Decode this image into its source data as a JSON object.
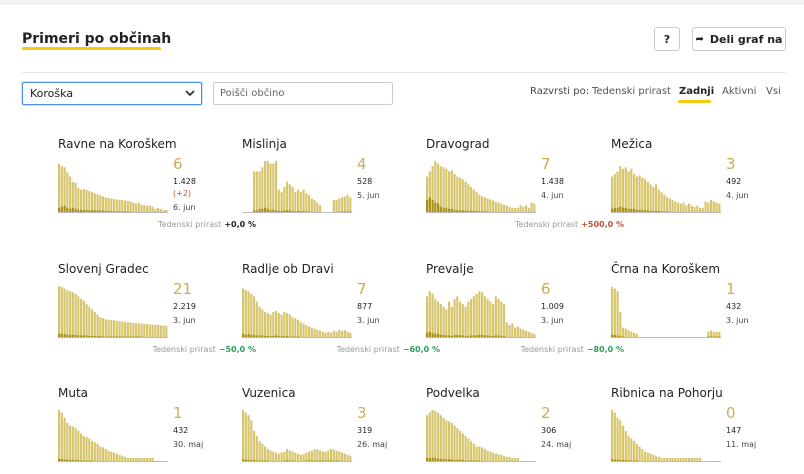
{
  "header": {
    "title": "Primeri po občinah",
    "help_label": "?",
    "share_label": "Deli graf na",
    "share_icon": "share-arrow-icon"
  },
  "filters": {
    "region_selected": "Koroška",
    "search_placeholder": "Poišči občino",
    "sort_label": "Razvrsti po:",
    "sort_options": [
      "Tedenski prirast",
      "Zadnji",
      "Aktivni",
      "Vsi"
    ],
    "sort_active": "Zadnji"
  },
  "colors": {
    "accent": "#f6c915",
    "bar_light": "#d6c56b",
    "bar_dark": "#a88f12",
    "number": "#c9ae55",
    "positive": "#c0503a",
    "negative": "#2f9e5d"
  },
  "weekly_label": "Tedenski prirast",
  "municipalities": [
    {
      "name": "Ravne na Koroškem",
      "latest": "6",
      "total": "1.428",
      "delta": "(+2)",
      "date": "6. jun",
      "weekly": "+0,0 %",
      "weekly_trend": "neutral",
      "chart_data": {
        "type": "bar",
        "values": [
          95,
          90,
          88,
          78,
          70,
          60,
          58,
          48,
          45,
          46,
          44,
          42,
          40,
          38,
          36,
          34,
          32,
          30,
          29,
          28,
          27,
          26,
          25,
          25,
          24,
          23,
          22,
          20,
          18,
          20,
          16,
          15,
          14,
          14,
          12,
          8,
          10,
          8,
          6,
          6
        ],
        "dark": [
          10,
          12,
          14,
          10,
          8,
          10,
          8,
          6,
          6,
          6,
          6,
          5,
          6,
          5,
          5,
          5,
          4,
          4,
          4,
          4,
          3,
          3,
          3,
          3,
          3,
          3,
          3,
          2,
          2,
          2,
          2,
          2,
          2,
          2,
          1,
          1,
          2,
          1,
          1,
          2
        ]
      }
    },
    {
      "name": "Mislinja",
      "latest": "4",
      "total": "528",
      "date": "5. jun",
      "weekly": "",
      "weekly_trend": "neutral",
      "chart_data": {
        "type": "bar",
        "values": [
          0,
          0,
          0,
          0,
          80,
          80,
          80,
          88,
          100,
          100,
          95,
          95,
          100,
          45,
          40,
          50,
          60,
          55,
          50,
          40,
          45,
          40,
          45,
          38,
          35,
          28,
          25,
          20,
          15,
          0,
          0,
          0,
          0,
          25,
          25,
          28,
          30,
          32,
          35,
          30
        ],
        "dark": [
          0,
          0,
          0,
          0,
          5,
          5,
          8,
          8,
          10,
          8,
          6,
          6,
          5,
          4,
          4,
          5,
          5,
          5,
          4,
          3,
          4,
          3,
          4,
          3,
          3,
          2,
          2,
          2,
          2,
          0,
          0,
          0,
          0,
          2,
          2,
          3,
          3,
          3,
          3,
          3
        ]
      }
    },
    {
      "name": "Dravograd",
      "latest": "7",
      "total": "1.438",
      "date": "4. jun",
      "weekly": "+500,0 %",
      "weekly_trend": "up",
      "chart_data": {
        "type": "bar",
        "values": [
          70,
          80,
          90,
          100,
          95,
          90,
          88,
          85,
          80,
          82,
          75,
          70,
          68,
          65,
          60,
          55,
          50,
          45,
          40,
          35,
          32,
          30,
          28,
          26,
          24,
          22,
          20,
          18,
          16,
          14,
          12,
          10,
          10,
          10,
          15,
          12,
          15,
          10,
          20,
          18
        ],
        "dark": [
          25,
          30,
          25,
          20,
          18,
          12,
          10,
          10,
          8,
          8,
          6,
          6,
          5,
          5,
          5,
          4,
          4,
          4,
          4,
          3,
          3,
          3,
          3,
          2,
          2,
          2,
          2,
          2,
          2,
          2,
          1,
          1,
          1,
          1,
          1,
          1,
          2,
          1,
          2,
          2
        ]
      }
    },
    {
      "name": "Mežica",
      "latest": "3",
      "total": "492",
      "date": "4. jun",
      "weekly": "",
      "weekly_trend": "neutral",
      "chart_data": {
        "type": "bar",
        "values": [
          70,
          75,
          80,
          90,
          85,
          88,
          80,
          85,
          75,
          70,
          72,
          68,
          65,
          60,
          55,
          50,
          55,
          45,
          40,
          35,
          30,
          28,
          25,
          22,
          20,
          18,
          20,
          15,
          18,
          14,
          12,
          14,
          10,
          10,
          22,
          20,
          25,
          22,
          20,
          18
        ],
        "dark": [
          8,
          10,
          10,
          12,
          10,
          10,
          8,
          8,
          8,
          6,
          6,
          6,
          5,
          5,
          4,
          4,
          4,
          4,
          3,
          3,
          3,
          3,
          2,
          2,
          2,
          2,
          2,
          2,
          2,
          1,
          1,
          1,
          1,
          1,
          2,
          2,
          2,
          2,
          2,
          2
        ]
      }
    },
    {
      "name": "Slovenj Gradec",
      "latest": "21",
      "total": "2.219",
      "date": "3. jun",
      "weekly": "−50,0 %",
      "weekly_trend": "down",
      "chart_data": {
        "type": "bar",
        "values": [
          100,
          98,
          95,
          92,
          90,
          88,
          85,
          80,
          75,
          72,
          65,
          60,
          55,
          50,
          45,
          40,
          38,
          36,
          35,
          34,
          34,
          33,
          32,
          32,
          31,
          30,
          30,
          29,
          29,
          28,
          28,
          27,
          27,
          26,
          26,
          25,
          25,
          24,
          24,
          23
        ],
        "dark": [
          8,
          8,
          8,
          6,
          6,
          6,
          6,
          5,
          5,
          5,
          5,
          4,
          4,
          4,
          4,
          4,
          3,
          3,
          3,
          3,
          3,
          3,
          3,
          3,
          3,
          3,
          3,
          3,
          3,
          3,
          3,
          2,
          2,
          2,
          2,
          2,
          2,
          2,
          2,
          2
        ]
      }
    },
    {
      "name": "Radlje ob Dravi",
      "latest": "7",
      "total": "877",
      "date": "3. jun",
      "weekly": "−60,0 %",
      "weekly_trend": "down",
      "chart_data": {
        "type": "bar",
        "values": [
          95,
          92,
          90,
          85,
          80,
          70,
          60,
          55,
          50,
          48,
          45,
          50,
          52,
          48,
          45,
          50,
          48,
          45,
          40,
          38,
          35,
          30,
          28,
          25,
          22,
          20,
          18,
          16,
          14,
          12,
          10,
          12,
          10,
          14,
          12,
          16,
          14,
          15,
          12,
          10
        ],
        "dark": [
          8,
          6,
          8,
          6,
          6,
          5,
          5,
          5,
          4,
          4,
          4,
          4,
          5,
          4,
          4,
          4,
          4,
          3,
          3,
          3,
          3,
          2,
          2,
          2,
          2,
          2,
          2,
          2,
          1,
          1,
          1,
          1,
          1,
          1,
          1,
          2,
          1,
          2,
          1,
          1
        ]
      }
    },
    {
      "name": "Prevalje",
      "latest": "6",
      "total": "1.009",
      "date": "3. jun",
      "weekly": "−80,0 %",
      "weekly_trend": "down",
      "chart_data": {
        "type": "bar",
        "values": [
          80,
          90,
          85,
          75,
          70,
          65,
          60,
          55,
          70,
          60,
          75,
          80,
          70,
          65,
          60,
          70,
          75,
          80,
          85,
          90,
          88,
          80,
          75,
          70,
          65,
          80,
          75,
          70,
          65,
          30,
          25,
          28,
          20,
          22,
          18,
          16,
          14,
          12,
          10,
          8
        ],
        "dark": [
          10,
          12,
          10,
          8,
          8,
          6,
          6,
          5,
          5,
          4,
          6,
          6,
          5,
          5,
          4,
          4,
          5,
          5,
          5,
          6,
          6,
          5,
          5,
          4,
          4,
          5,
          5,
          4,
          4,
          2,
          2,
          2,
          2,
          2,
          2,
          1,
          1,
          1,
          1,
          1
        ]
      }
    },
    {
      "name": "Črna na Koroškem",
      "latest": "1",
      "total": "432",
      "date": "3. jun",
      "weekly": "",
      "weekly_trend": "neutral",
      "chart_data": {
        "type": "bar",
        "values": [
          98,
          95,
          90,
          50,
          20,
          18,
          15,
          12,
          10,
          8,
          0,
          0,
          0,
          0,
          0,
          0,
          0,
          0,
          0,
          0,
          0,
          0,
          0,
          0,
          0,
          0,
          0,
          0,
          0,
          0,
          0,
          0,
          0,
          0,
          0,
          12,
          14,
          12,
          12,
          12
        ],
        "dark": [
          6,
          6,
          5,
          4,
          3,
          2,
          2,
          2,
          2,
          2,
          0,
          0,
          0,
          0,
          0,
          0,
          0,
          0,
          0,
          0,
          0,
          0,
          0,
          0,
          0,
          0,
          0,
          0,
          0,
          0,
          0,
          0,
          0,
          0,
          0,
          3,
          3,
          3,
          3,
          3
        ]
      }
    },
    {
      "name": "Muta",
      "latest": "1",
      "total": "432",
      "date": "30. maj",
      "weekly": "",
      "weekly_trend": "neutral",
      "chart_data": {
        "type": "bar",
        "values": [
          100,
          95,
          85,
          75,
          70,
          68,
          65,
          60,
          55,
          50,
          48,
          45,
          40,
          38,
          35,
          30,
          28,
          25,
          22,
          20,
          18,
          16,
          14,
          12,
          10,
          8,
          8,
          8,
          8,
          8,
          8,
          8,
          8,
          8,
          8,
          0,
          0,
          0,
          0,
          0
        ],
        "dark": [
          6,
          6,
          5,
          5,
          4,
          4,
          4,
          4,
          3,
          3,
          3,
          3,
          3,
          2,
          2,
          2,
          2,
          2,
          2,
          2,
          1,
          1,
          1,
          1,
          1,
          1,
          1,
          1,
          1,
          1,
          1,
          1,
          1,
          1,
          1,
          0,
          0,
          0,
          0,
          0
        ]
      }
    },
    {
      "name": "Vuzenica",
      "latest": "3",
      "total": "319",
      "date": "26. maj",
      "weekly": "",
      "weekly_trend": "neutral",
      "chart_data": {
        "type": "bar",
        "values": [
          100,
          95,
          90,
          80,
          60,
          50,
          40,
          35,
          30,
          25,
          22,
          20,
          18,
          16,
          18,
          20,
          25,
          22,
          20,
          18,
          16,
          14,
          15,
          18,
          20,
          22,
          25,
          24,
          22,
          20,
          20,
          22,
          25,
          24,
          22,
          20,
          18,
          16,
          14,
          12
        ],
        "dark": [
          5,
          5,
          4,
          4,
          4,
          3,
          3,
          3,
          3,
          3,
          2,
          2,
          2,
          2,
          2,
          3,
          3,
          3,
          3,
          2,
          2,
          2,
          2,
          3,
          3,
          3,
          3,
          3,
          3,
          3,
          3,
          3,
          3,
          3,
          3,
          2,
          2,
          2,
          2,
          2
        ]
      }
    },
    {
      "name": "Podvelka",
      "latest": "2",
      "total": "306",
      "date": "24. maj",
      "weekly": "",
      "weekly_trend": "neutral",
      "chart_data": {
        "type": "bar",
        "values": [
          90,
          95,
          100,
          98,
          95,
          90,
          85,
          80,
          78,
          75,
          70,
          65,
          60,
          55,
          50,
          45,
          40,
          35,
          30,
          30,
          28,
          25,
          22,
          20,
          18,
          16,
          15,
          14,
          12,
          10,
          10,
          8,
          8,
          8,
          0,
          0,
          0,
          0,
          0,
          0
        ],
        "dark": [
          8,
          8,
          8,
          8,
          6,
          6,
          6,
          5,
          5,
          5,
          4,
          4,
          4,
          4,
          3,
          3,
          3,
          3,
          3,
          3,
          2,
          2,
          2,
          2,
          2,
          2,
          2,
          1,
          1,
          1,
          1,
          1,
          1,
          1,
          0,
          0,
          0,
          0,
          0,
          0
        ]
      }
    },
    {
      "name": "Ribnica na Pohorju",
      "latest": "0",
      "total": "147",
      "date": "11. maj",
      "weekly": "",
      "weekly_trend": "neutral",
      "chart_data": {
        "type": "bar",
        "values": [
          100,
          95,
          85,
          80,
          70,
          60,
          50,
          45,
          40,
          35,
          30,
          25,
          20,
          18,
          16,
          14,
          12,
          10,
          8,
          8,
          8,
          8,
          8,
          8,
          8,
          8,
          8,
          8,
          8,
          8,
          8,
          8,
          8,
          0,
          0,
          0,
          0,
          0,
          0,
          0
        ],
        "dark": [
          5,
          5,
          5,
          4,
          4,
          4,
          3,
          3,
          3,
          3,
          2,
          2,
          2,
          2,
          2,
          2,
          2,
          1,
          1,
          1,
          1,
          1,
          1,
          1,
          1,
          1,
          1,
          1,
          1,
          1,
          1,
          1,
          1,
          0,
          0,
          0,
          0,
          0,
          0,
          0
        ]
      }
    }
  ]
}
